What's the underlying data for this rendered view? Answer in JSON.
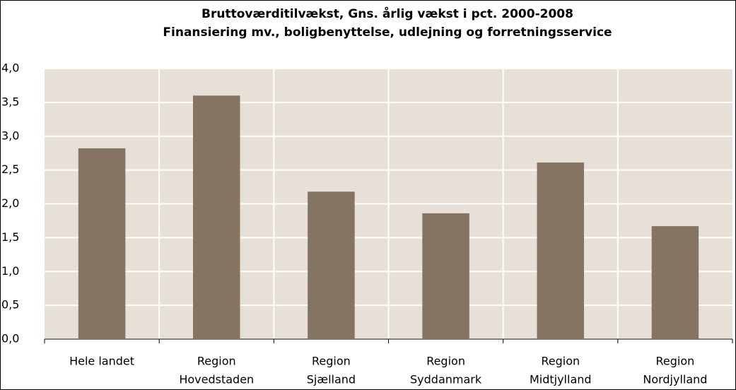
{
  "chart_data": {
    "type": "bar",
    "title": "Bruttoværditilvækst, Gns. årlig vækst i pct. 2000-2008",
    "subtitle": "Finansiering mv., boligbenyttelse, udlejning og forretningsservice",
    "categories": [
      [
        "Hele landet"
      ],
      [
        "Region",
        "Hovedstaden"
      ],
      [
        "Region",
        "Sjælland"
      ],
      [
        "Region",
        "Syddanmark"
      ],
      [
        "Region",
        "Midtjylland"
      ],
      [
        "Region",
        "Nordjylland"
      ]
    ],
    "values": [
      2.82,
      3.6,
      2.18,
      1.86,
      2.61,
      1.67
    ],
    "color": "#857461",
    "ylim": [
      0,
      4
    ],
    "yticks": [
      {
        "value": 0,
        "label": "0,0"
      },
      {
        "value": 0.5,
        "label": "0,5"
      },
      {
        "value": 1,
        "label": "1,0"
      },
      {
        "value": 1.5,
        "label": "1,5"
      },
      {
        "value": 2,
        "label": "2,0"
      },
      {
        "value": 2.5,
        "label": "2,5"
      },
      {
        "value": 3,
        "label": "3,0"
      },
      {
        "value": 3.5,
        "label": "3,5"
      },
      {
        "value": 4,
        "label": "4,0"
      }
    ],
    "grid": true
  }
}
